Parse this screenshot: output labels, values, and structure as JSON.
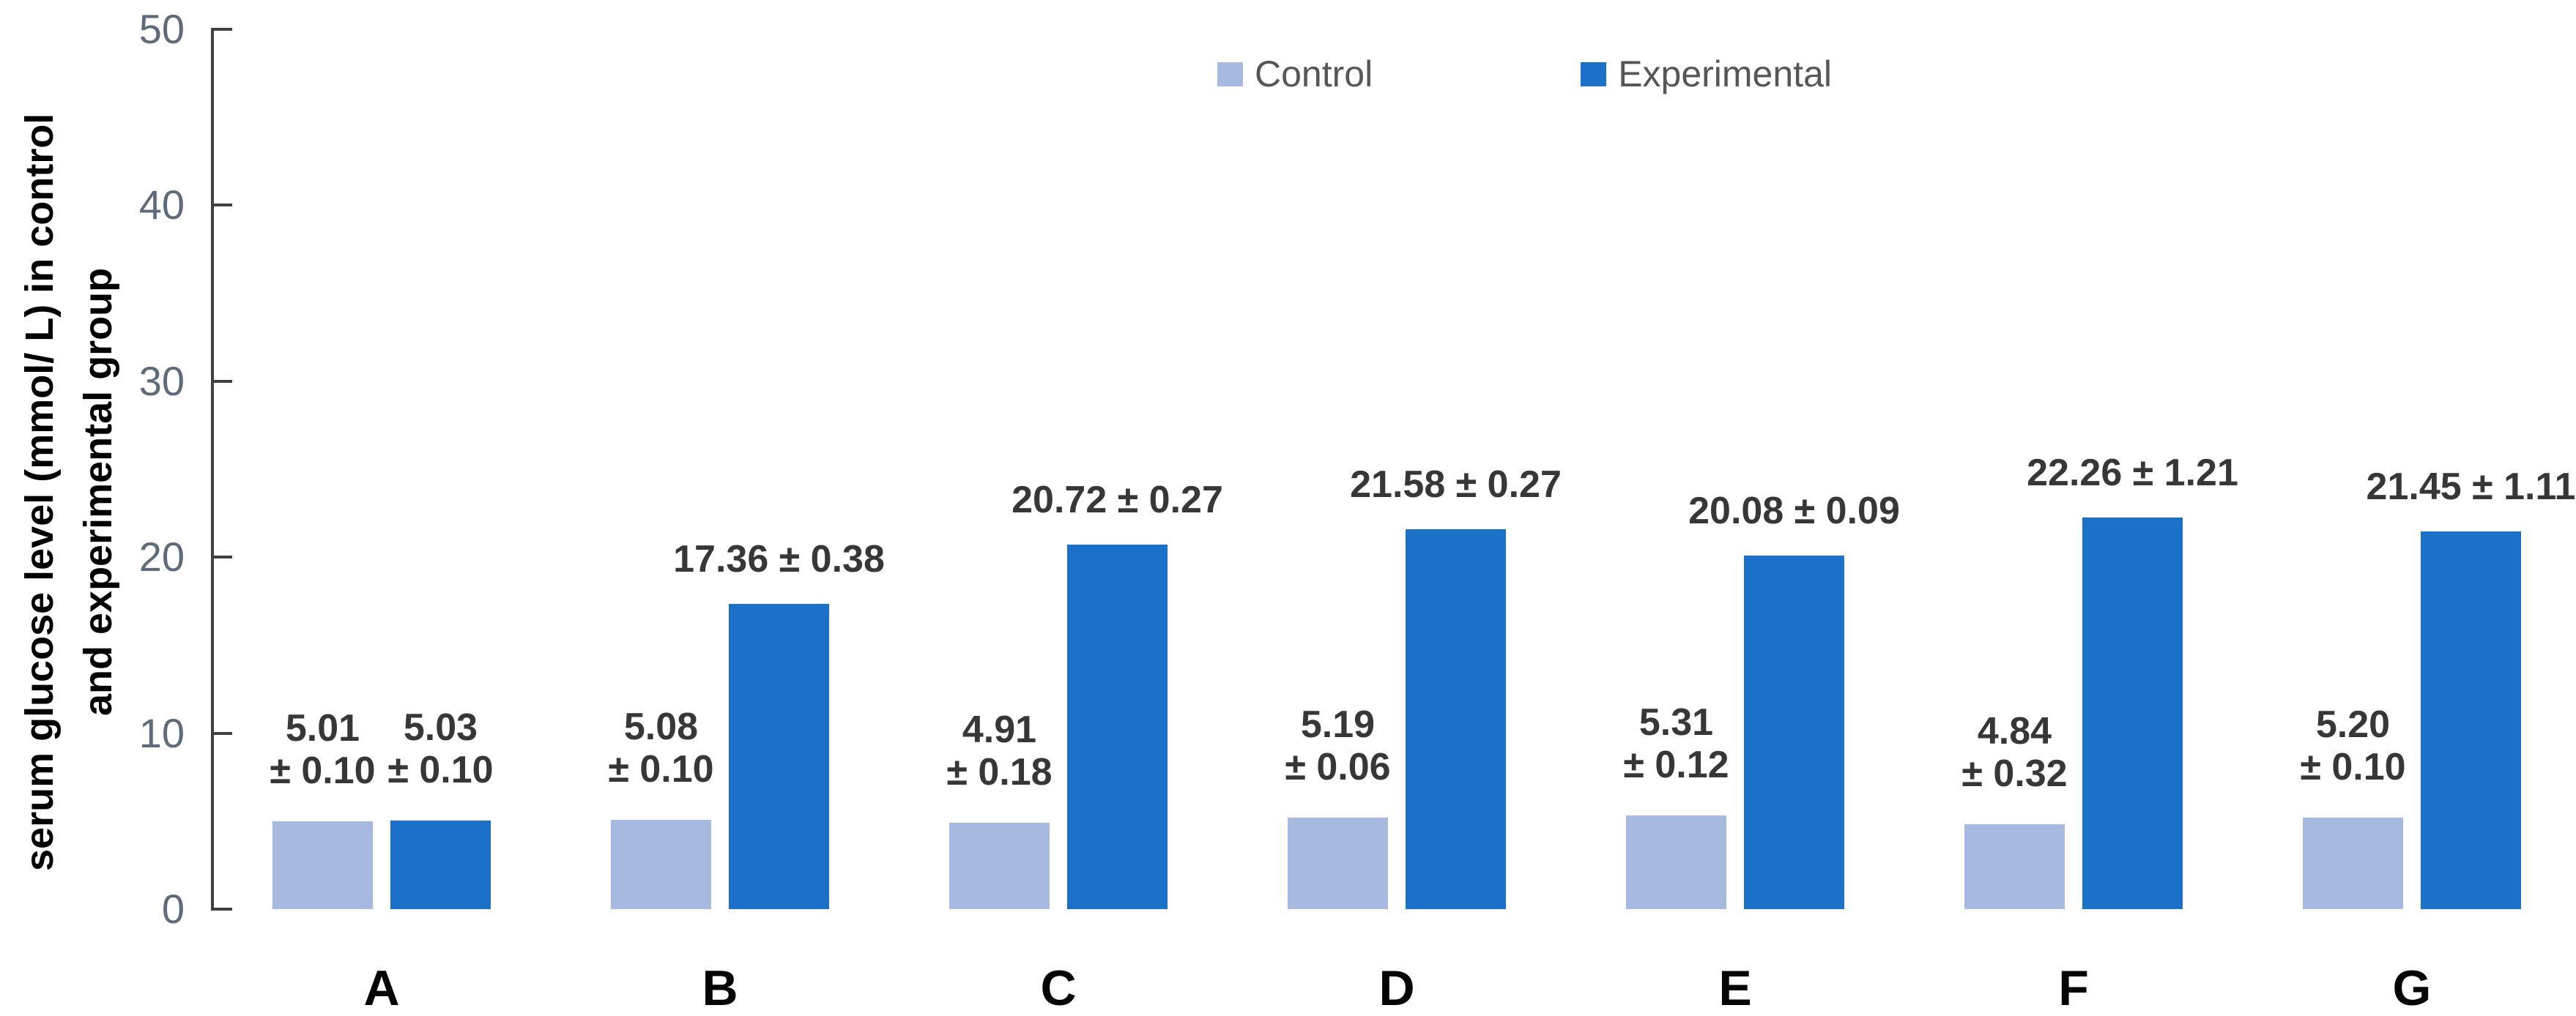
{
  "chart_data": {
    "type": "bar",
    "title": "",
    "y_axis_title_line1": "serum glucose level (mmol/ L) in control",
    "y_axis_title_line2": "and experimental group",
    "categories": [
      "A",
      "B",
      "C",
      "D",
      "E",
      "F",
      "G"
    ],
    "series": [
      {
        "name": "Control",
        "values": [
          5.01,
          5.08,
          4.91,
          5.19,
          5.31,
          4.84,
          5.2
        ],
        "errors": [
          0.1,
          0.1,
          0.18,
          0.06,
          0.12,
          0.32,
          0.1
        ]
      },
      {
        "name": "Experimental",
        "values": [
          5.03,
          17.36,
          20.72,
          21.58,
          20.08,
          22.26,
          21.45
        ],
        "errors": [
          0.1,
          0.38,
          0.27,
          0.27,
          0.09,
          1.21,
          1.11
        ]
      }
    ],
    "bar_labels": {
      "control": [
        [
          "5.01",
          "± 0.10"
        ],
        [
          "5.08",
          "± 0.10"
        ],
        [
          "4.91",
          "± 0.18"
        ],
        [
          "5.19",
          "± 0.06"
        ],
        [
          "5.31",
          "± 0.12"
        ],
        [
          "4.84",
          "± 0.32"
        ],
        [
          "5.20",
          "± 0.10"
        ]
      ],
      "experimental": [
        [
          "5.03",
          "± 0.10"
        ],
        [
          "17.36 ± 0.38"
        ],
        [
          "20.72 ± 0.27"
        ],
        [
          "21.58 ± 0.27"
        ],
        [
          "20.08 ± 0.09"
        ],
        [
          "22.26 ± 1.21"
        ],
        [
          "21.45 ± 1.11"
        ]
      ]
    },
    "ylim": [
      0,
      50
    ],
    "yticks": [
      0,
      10,
      20,
      30,
      40,
      50
    ],
    "grid": false,
    "legend_position": "top"
  },
  "colors": {
    "control": "#A7B9DE",
    "experimental": "#1B70C7",
    "axis": "#404040",
    "tick_label": "#5E6B7B",
    "data_label": "#373737",
    "category_label": "#050505",
    "legend_text": "#565656"
  }
}
